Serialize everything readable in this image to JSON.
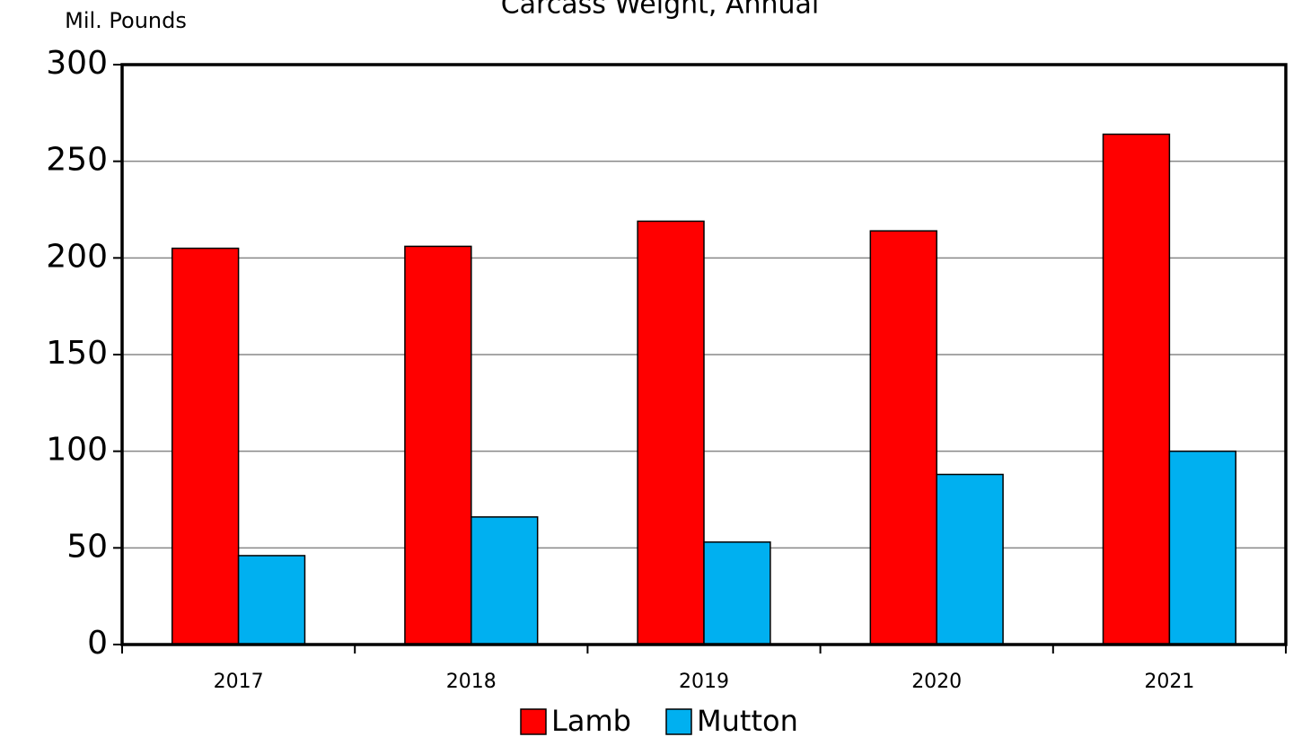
{
  "chart_data": {
    "type": "bar",
    "title": "Carcass Weight, Annual",
    "y_label": "Mil. Pounds",
    "categories": [
      "2017",
      "2018",
      "2019",
      "2020",
      "2021"
    ],
    "series": [
      {
        "name": "Lamb",
        "color": "#ff0000",
        "values": [
          205,
          206,
          219,
          214,
          264
        ]
      },
      {
        "name": "Mutton",
        "color": "#00b0f0",
        "values": [
          46,
          66,
          53,
          88,
          100
        ]
      }
    ],
    "ylim": [
      0,
      300
    ],
    "yticks": [
      0,
      50,
      100,
      150,
      200,
      250,
      300
    ],
    "grid": true,
    "legend": "bottom"
  }
}
